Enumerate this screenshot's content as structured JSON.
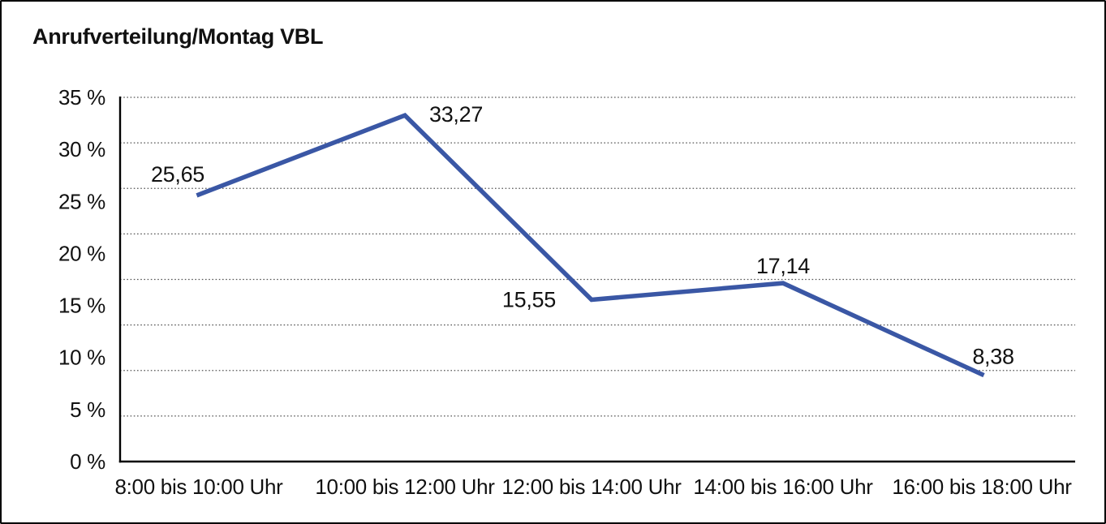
{
  "title": "Anrufverteilung/Montag VBL",
  "chart_data": {
    "type": "line",
    "title": "Anrufverteilung/Montag VBL",
    "categories": [
      "8:00 bis 10:00 Uhr",
      "10:00 bis 12:00 Uhr",
      "12:00 bis 14:00 Uhr",
      "14:00 bis 16:00 Uhr",
      "16:00 bis 18:00 Uhr"
    ],
    "values": [
      25.65,
      33.27,
      15.55,
      17.14,
      8.38
    ],
    "point_labels": [
      "25,65",
      "33,27",
      "15,55",
      "17,14",
      "8,38"
    ],
    "xlabel": "",
    "ylabel": "",
    "y_tick_labels": [
      "35 %",
      "30 %",
      "25 %",
      "20 %",
      "15 %",
      "10 %",
      "5 %",
      "0 %"
    ],
    "y_tick_values": [
      35,
      30,
      25,
      20,
      15,
      10,
      5,
      0
    ],
    "ylim": [
      0,
      35
    ],
    "gridline_count": 9,
    "grid_style": "horizontal-dotted",
    "legend": "none",
    "colors": {
      "line": "#3A57A5",
      "axis": "#000000",
      "gridline": "#555555",
      "text": "#111111",
      "background": "#ffffff"
    }
  }
}
